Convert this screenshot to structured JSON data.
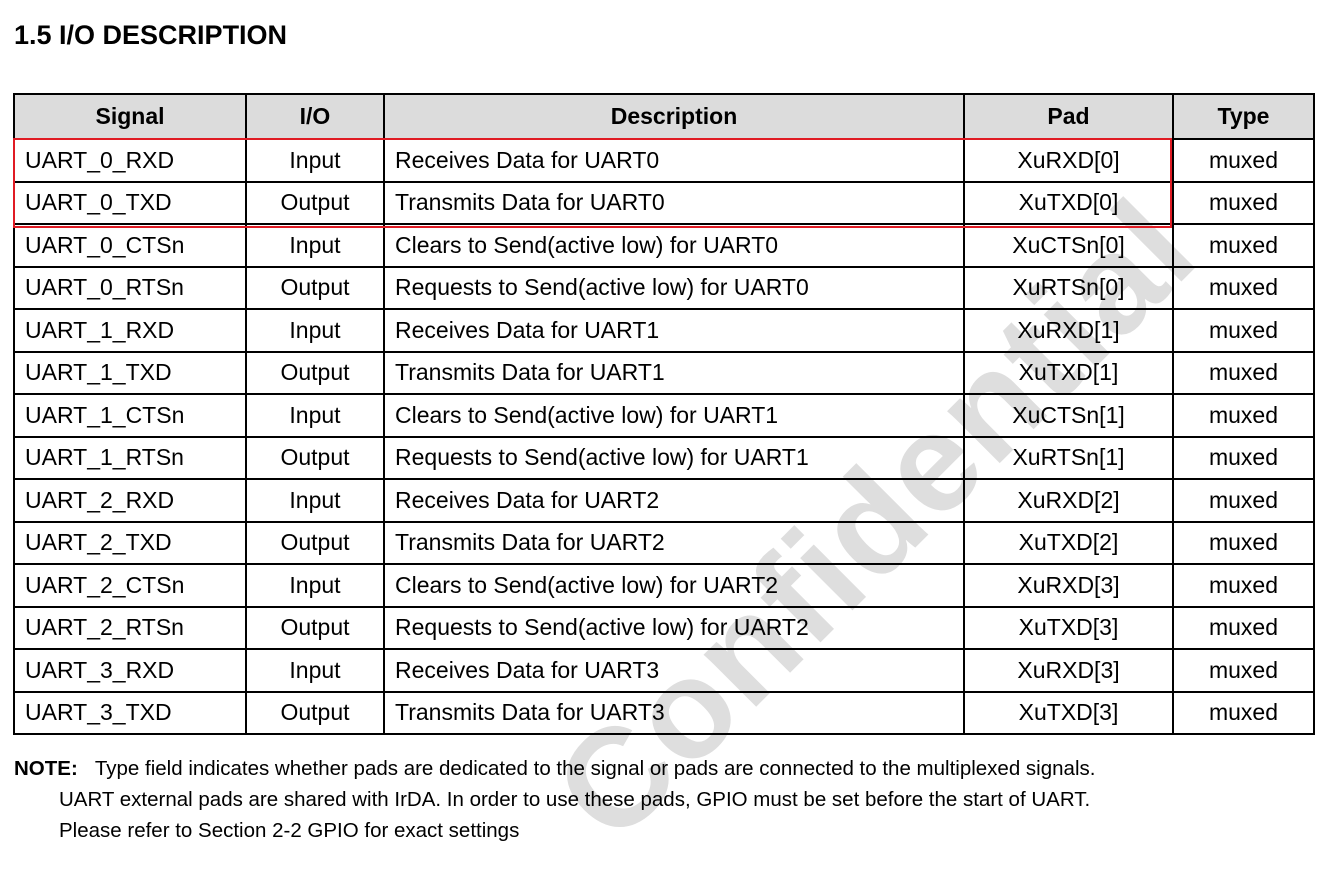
{
  "section_title": "1.5  I/O DESCRIPTION",
  "watermark": "Confidential",
  "highlight_color": "#e01b24",
  "table": {
    "headers": [
      "Signal",
      "I/O",
      "Description",
      "Pad",
      "Type"
    ],
    "rows": [
      [
        "UART_0_RXD",
        "Input",
        "Receives Data for UART0",
        "XuRXD[0]",
        "muxed"
      ],
      [
        "UART_0_TXD",
        "Output",
        "Transmits Data for UART0",
        "XuTXD[0]",
        "muxed"
      ],
      [
        "UART_0_CTSn",
        "Input",
        "Clears to Send(active low) for UART0",
        "XuCTSn[0]",
        "muxed"
      ],
      [
        "UART_0_RTSn",
        "Output",
        "Requests to Send(active low) for UART0",
        "XuRTSn[0]",
        "muxed"
      ],
      [
        "UART_1_RXD",
        "Input",
        "Receives Data for UART1",
        "XuRXD[1]",
        "muxed"
      ],
      [
        "UART_1_TXD",
        "Output",
        "Transmits Data for UART1",
        "XuTXD[1]",
        "muxed"
      ],
      [
        "UART_1_CTSn",
        "Input",
        "Clears to Send(active low) for UART1",
        "XuCTSn[1]",
        "muxed"
      ],
      [
        "UART_1_RTSn",
        "Output",
        "Requests to Send(active low) for UART1",
        "XuRTSn[1]",
        "muxed"
      ],
      [
        "UART_2_RXD",
        "Input",
        "Receives Data for UART2",
        "XuRXD[2]",
        "muxed"
      ],
      [
        "UART_2_TXD",
        "Output",
        "Transmits Data for UART2",
        "XuTXD[2]",
        "muxed"
      ],
      [
        "UART_2_CTSn",
        "Input",
        "Clears to Send(active low) for UART2",
        "XuRXD[3]",
        "muxed"
      ],
      [
        "UART_2_RTSn",
        "Output",
        "Requests to Send(active low) for UART2",
        "XuTXD[3]",
        "muxed"
      ],
      [
        "UART_3_RXD",
        "Input",
        "Receives Data for UART3",
        "XuRXD[3]",
        "muxed"
      ],
      [
        "UART_3_TXD",
        "Output",
        "Transmits Data for UART3",
        "XuTXD[3]",
        "muxed"
      ]
    ]
  },
  "note": {
    "label": "NOTE:",
    "lines": [
      "Type field indicates whether pads are dedicated to the signal or pads are connected to the multiplexed signals.",
      "UART external pads are shared with IrDA. In order to use these pads, GPIO must be set before the start of UART.",
      "Please refer to Section 2-2 GPIO for exact settings"
    ]
  }
}
